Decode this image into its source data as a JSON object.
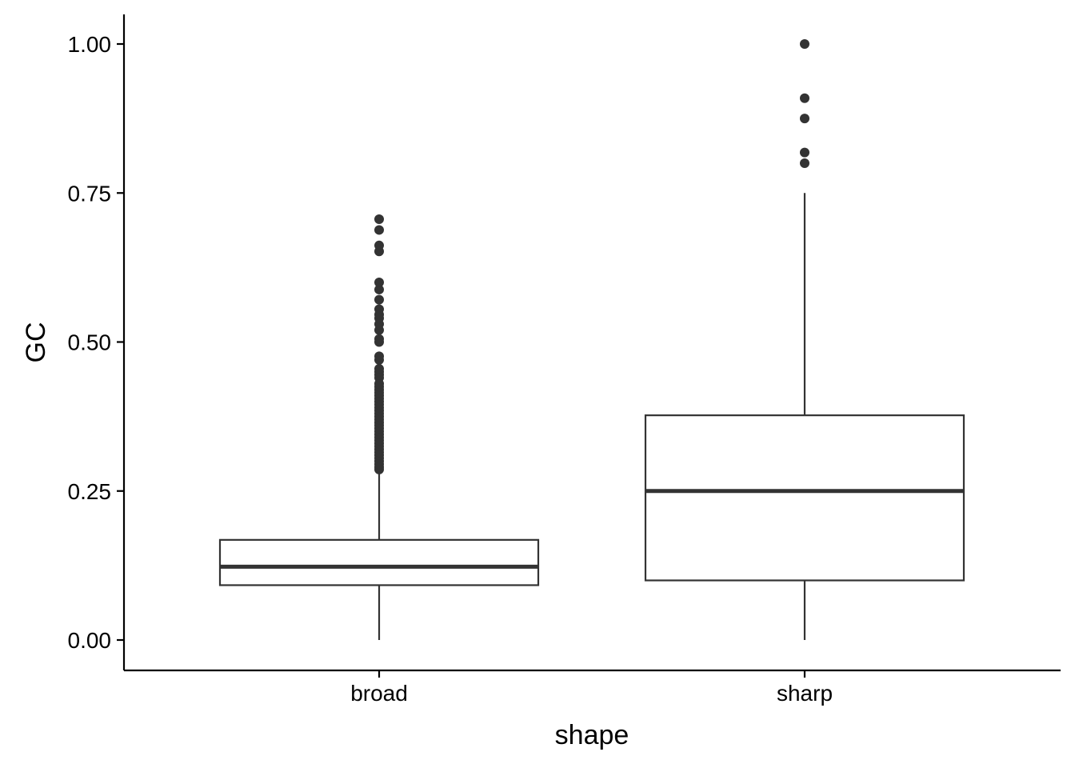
{
  "chart_data": {
    "type": "boxplot",
    "xlabel": "shape",
    "ylabel": "GC",
    "ylim": [
      -0.05,
      1.05
    ],
    "yticks": [
      0,
      0.25,
      0.5,
      0.75,
      1.0
    ],
    "ytick_labels": [
      "0.00",
      "0.25",
      "0.50",
      "0.75",
      "1.00"
    ],
    "categories": [
      "broad",
      "sharp"
    ],
    "grid": false,
    "legend": "none",
    "colors": {
      "box_fill": "#ffffff",
      "box_stroke": "#333333",
      "outlier": "#333333",
      "axis": "#000000"
    },
    "boxes": [
      {
        "category": "broad",
        "whisker_low": 0.0,
        "q1": 0.092,
        "median": 0.123,
        "q3": 0.168,
        "whisker_high": 0.282,
        "outliers": [
          0.286,
          0.29,
          0.295,
          0.3,
          0.305,
          0.31,
          0.315,
          0.32,
          0.325,
          0.33,
          0.335,
          0.34,
          0.345,
          0.35,
          0.355,
          0.36,
          0.365,
          0.37,
          0.375,
          0.38,
          0.385,
          0.39,
          0.395,
          0.4,
          0.405,
          0.41,
          0.415,
          0.42,
          0.425,
          0.43,
          0.44,
          0.445,
          0.45,
          0.455,
          0.47,
          0.476,
          0.5,
          0.505,
          0.52,
          0.53,
          0.54,
          0.546,
          0.555,
          0.571,
          0.588,
          0.6,
          0.652,
          0.662,
          0.688,
          0.706
        ]
      },
      {
        "category": "sharp",
        "whisker_low": 0.0,
        "q1": 0.1,
        "median": 0.25,
        "q3": 0.377,
        "whisker_high": 0.75,
        "outliers": [
          0.8,
          0.818,
          0.875,
          0.909,
          1.0
        ]
      }
    ]
  }
}
